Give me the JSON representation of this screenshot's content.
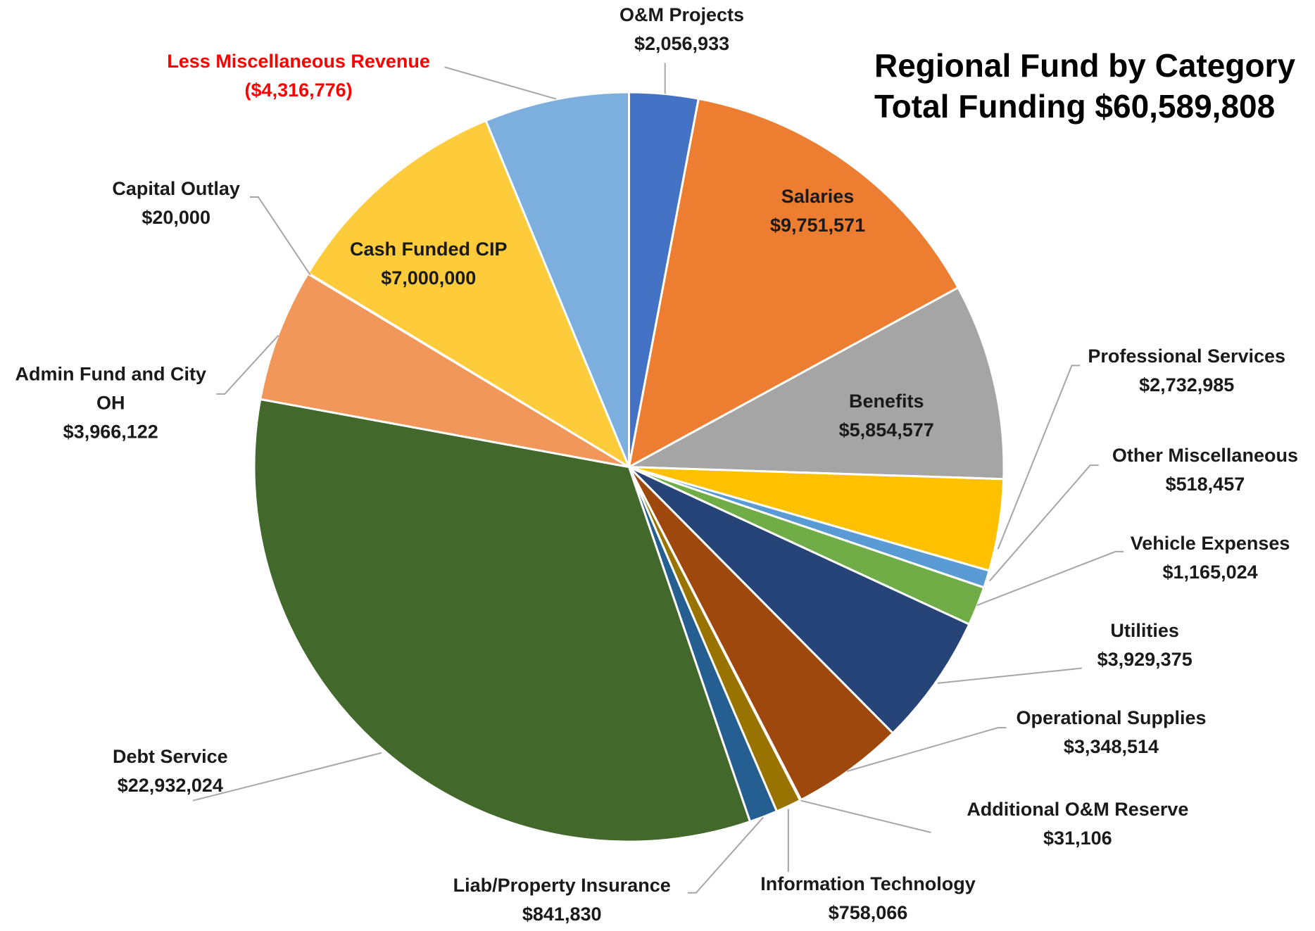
{
  "chart_data": {
    "type": "pie",
    "title": "Regional Fund by Category",
    "subtitle": "Total Funding $60,589,808",
    "categories": [
      "O&M Projects",
      "Salaries",
      "Benefits",
      "Professional Services",
      "Other Miscellaneous",
      "Vehicle Expenses",
      "Utilities",
      "Operational Supplies",
      "Additional O&M Reserve",
      "Information Technology",
      "Liab/Property Insurance",
      "Debt Service",
      "Admin Fund and City OH",
      "Capital Outlay",
      "Cash Funded CIP",
      "Less Miscellaneous Revenue"
    ],
    "values": [
      2056933,
      9751571,
      5854577,
      2732985,
      518457,
      1165024,
      3929375,
      3348514,
      31106,
      758066,
      841830,
      22932024,
      3966122,
      20000,
      7000000,
      -4316776
    ],
    "value_labels": [
      "$2,056,933",
      "$9,751,571",
      "$5,854,577",
      "$2,732,985",
      "$518,457",
      "$1,165,024",
      "$3,929,375",
      "$3,348,514",
      "$31,106",
      "$758,066",
      "$841,830",
      "$22,932,024",
      "$3,966,122",
      "$20,000",
      "$7,000,000",
      "($4,316,776)"
    ],
    "colors": [
      "#4472c4",
      "#ed7d31",
      "#a5a5a5",
      "#ffc000",
      "#5b9bd5",
      "#70ad47",
      "#264478",
      "#9e480e",
      "#636363",
      "#997300",
      "#255e91",
      "#43682b",
      "#f1975a",
      "#b7b7b7",
      "#fecb3a",
      "#7cafdd"
    ],
    "label_colors": [
      "#1a1a1a",
      "#1a1a1a",
      "#1a1a1a",
      "#1a1a1a",
      "#1a1a1a",
      "#1a1a1a",
      "#1a1a1a",
      "#1a1a1a",
      "#1a1a1a",
      "#1a1a1a",
      "#1a1a1a",
      "#1a1a1a",
      "#1a1a1a",
      "#1a1a1a",
      "#1a1a1a",
      "#ff0000"
    ]
  }
}
